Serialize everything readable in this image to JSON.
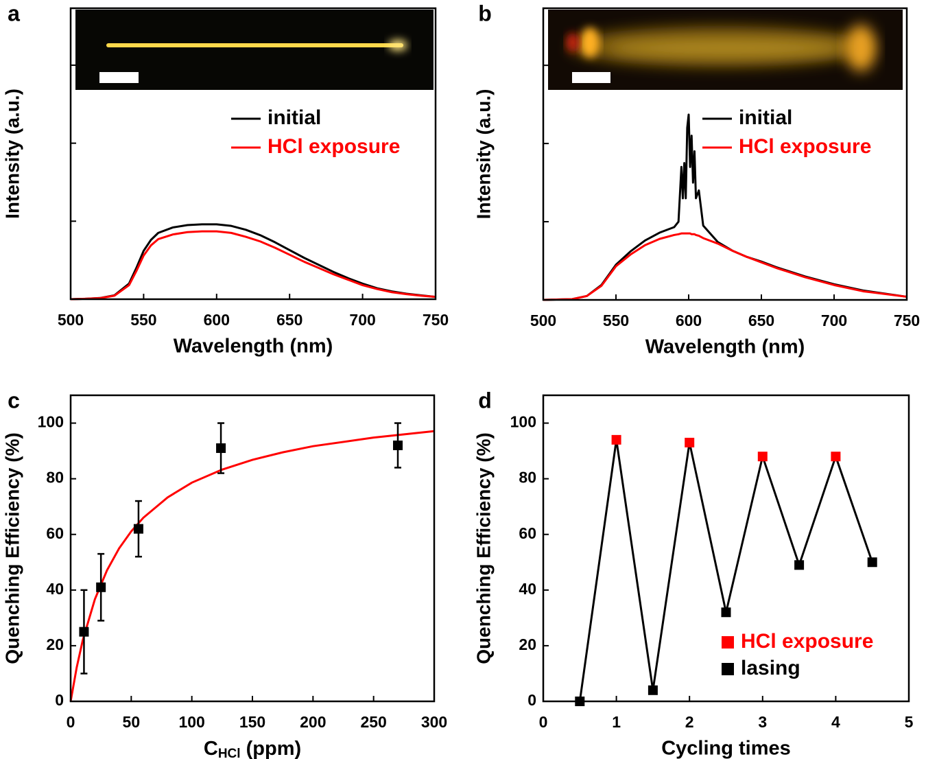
{
  "chart_data": [
    {
      "type": "line",
      "label": "a",
      "x_label": "Wavelength (nm)",
      "y_label": "Intensity (a.u.)",
      "xlim": [
        500,
        750
      ],
      "xticks": [
        500,
        550,
        600,
        650,
        700,
        750
      ],
      "ylim": [
        0,
        3.73
      ],
      "yticks": [
        0,
        1,
        2,
        3
      ],
      "ytick_labels": false,
      "x": [
        500,
        510,
        520,
        530,
        540,
        545,
        550,
        555,
        560,
        570,
        580,
        590,
        600,
        610,
        620,
        630,
        640,
        650,
        660,
        670,
        680,
        690,
        700,
        710,
        720,
        730,
        740,
        750
      ],
      "series": [
        {
          "name": "initial",
          "color": "#000000",
          "values": [
            0,
            0.005,
            0.015,
            0.05,
            0.2,
            0.4,
            0.62,
            0.76,
            0.85,
            0.92,
            0.95,
            0.96,
            0.96,
            0.94,
            0.89,
            0.82,
            0.73,
            0.63,
            0.53,
            0.44,
            0.35,
            0.27,
            0.2,
            0.14,
            0.1,
            0.07,
            0.05,
            0.03
          ]
        },
        {
          "name": "HCl exposure",
          "color": "#ff0000",
          "values": [
            0,
            0.005,
            0.013,
            0.045,
            0.18,
            0.36,
            0.56,
            0.69,
            0.77,
            0.83,
            0.86,
            0.87,
            0.87,
            0.85,
            0.8,
            0.74,
            0.66,
            0.57,
            0.48,
            0.4,
            0.32,
            0.25,
            0.18,
            0.13,
            0.09,
            0.065,
            0.045,
            0.03
          ]
        }
      ]
    },
    {
      "type": "line",
      "label": "b",
      "x_label": "Wavelength (nm)",
      "y_label": "Intensity (a.u.)",
      "xlim": [
        500,
        750
      ],
      "xticks": [
        500,
        550,
        600,
        650,
        700,
        750
      ],
      "ylim": [
        0,
        3.73
      ],
      "yticks": [
        0,
        1,
        2,
        3
      ],
      "ytick_labels": false,
      "x": [
        500,
        520,
        530,
        540,
        550,
        560,
        570,
        580,
        590,
        593,
        595,
        596,
        597,
        598,
        599,
        600,
        601,
        602,
        603,
        604,
        605,
        607,
        610,
        620,
        630,
        640,
        650,
        660,
        680,
        700,
        720,
        750
      ],
      "series": [
        {
          "name": "initial",
          "color": "#000000",
          "values": [
            0,
            0.01,
            0.05,
            0.19,
            0.45,
            0.62,
            0.76,
            0.86,
            0.93,
            1.0,
            1.7,
            1.3,
            1.75,
            1.3,
            2.2,
            2.37,
            1.7,
            2.1,
            1.5,
            1.9,
            1.3,
            1.4,
            0.95,
            0.74,
            0.63,
            0.55,
            0.49,
            0.42,
            0.3,
            0.2,
            0.12,
            0.04
          ]
        },
        {
          "name": "HCl exposure",
          "color": "#ff0000",
          "values": [
            0,
            0.01,
            0.05,
            0.18,
            0.43,
            0.58,
            0.7,
            0.78,
            0.83,
            0.84,
            0.85,
            0.85,
            0.85,
            0.85,
            0.85,
            0.85,
            0.85,
            0.84,
            0.84,
            0.84,
            0.83,
            0.82,
            0.79,
            0.72,
            0.63,
            0.55,
            0.48,
            0.41,
            0.29,
            0.19,
            0.11,
            0.04
          ]
        }
      ]
    },
    {
      "type": "scatter",
      "label": "c",
      "x_label": {
        "main": "C",
        "sub": "HCl",
        "unit": "(ppm)"
      },
      "y_label": "Quenching Efficiency (%)",
      "xlim": [
        0,
        300
      ],
      "xticks": [
        0,
        50,
        100,
        150,
        200,
        250,
        300
      ],
      "ylim": [
        0,
        110
      ],
      "yticks": [
        0,
        20,
        40,
        60,
        80,
        100
      ],
      "x": [
        11,
        25,
        56,
        124,
        270
      ],
      "values": [
        25,
        41,
        62,
        91,
        92
      ],
      "errors": [
        15,
        12,
        10,
        9,
        8
      ],
      "color": "#000000",
      "fit": {
        "color": "#ff0000",
        "x": [
          0,
          5,
          10,
          20,
          30,
          40,
          50,
          60,
          80,
          100,
          125,
          150,
          175,
          200,
          250,
          300
        ],
        "values": [
          0,
          12.2,
          22,
          36.7,
          47.1,
          55,
          61.1,
          66,
          73.3,
          78.6,
          83.3,
          86.8,
          89.5,
          91.7,
          94.8,
          97.1
        ]
      }
    },
    {
      "type": "line",
      "label": "d",
      "x_label": "Cycling times",
      "y_label": "Quenching Efficiency (%)",
      "xlim": [
        0,
        5
      ],
      "xticks": [
        0,
        1,
        2,
        3,
        4,
        5
      ],
      "ylim": [
        0,
        110
      ],
      "yticks": [
        0,
        20,
        40,
        60,
        80,
        100
      ],
      "x": [
        0.5,
        1,
        1.5,
        2,
        2.5,
        3,
        3.5,
        4,
        4.5
      ],
      "values": [
        0,
        94,
        4,
        93,
        32,
        88,
        49,
        88,
        50
      ],
      "line_color": "#000000",
      "marker_colors": [
        "#000000",
        "#ff0000",
        "#000000",
        "#ff0000",
        "#000000",
        "#ff0000",
        "#000000",
        "#ff0000",
        "#000000"
      ],
      "legend_position": "lower right",
      "legend": [
        {
          "name": "HCl exposure",
          "color": "#ff0000"
        },
        {
          "name": "lasing",
          "color": "#000000"
        }
      ]
    }
  ]
}
